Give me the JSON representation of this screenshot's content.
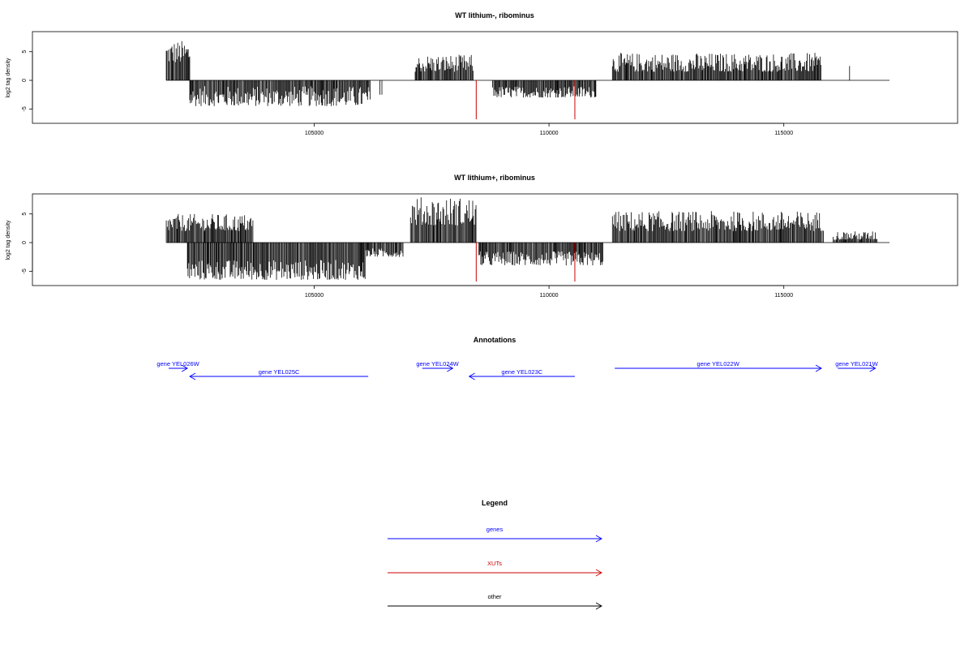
{
  "chart_data": [
    {
      "type": "bar",
      "title": "WT lithium-, ribominus",
      "xlabel": "",
      "ylabel": "log2 tag density",
      "x_ticks": [
        105000,
        110000,
        115000
      ],
      "y_ticks": [
        -5,
        0,
        5
      ],
      "xlim": [
        99000,
        118700
      ],
      "ylim": [
        -7.5,
        8.5
      ],
      "grid": false,
      "series": [
        {
          "color": "#000000",
          "blocks": [
            {
              "start": 101850,
              "end": 102350,
              "min": 3,
              "max": 7
            },
            {
              "start": 102350,
              "end": 106200,
              "min": -4.5,
              "max": -1
            },
            {
              "start": 106400,
              "end": 106450,
              "min": -2.5,
              "max": -2.5
            },
            {
              "start": 107150,
              "end": 108400,
              "min": 1.5,
              "max": 4.5
            },
            {
              "start": 108800,
              "end": 111000,
              "min": -3,
              "max": -1
            },
            {
              "start": 111350,
              "end": 115800,
              "min": 1.5,
              "max": 4.8
            },
            {
              "start": 116400,
              "end": 116430,
              "min": 2.5,
              "max": 2.5
            }
          ]
        },
        {
          "color": "#cc0000",
          "name": "XUTs",
          "bars": [
            {
              "x": 108450,
              "y": -6.8
            },
            {
              "x": 110550,
              "y": -6.8
            }
          ]
        }
      ]
    },
    {
      "type": "bar",
      "title": "WT lithium+, ribominus",
      "xlabel": "",
      "ylabel": "log2 tag density",
      "x_ticks": [
        105000,
        110000,
        115000
      ],
      "y_ticks": [
        -5,
        0,
        5
      ],
      "xlim": [
        99000,
        118700
      ],
      "ylim": [
        -7.5,
        8.5
      ],
      "grid": false,
      "series": [
        {
          "color": "#000000",
          "blocks": [
            {
              "start": 101850,
              "end": 103700,
              "min": 2,
              "max": 5
            },
            {
              "start": 102300,
              "end": 106100,
              "min": -6.5,
              "max": -3
            },
            {
              "start": 106100,
              "end": 106900,
              "min": -2.5,
              "max": -1
            },
            {
              "start": 107050,
              "end": 108450,
              "min": 3,
              "max": 8
            },
            {
              "start": 108500,
              "end": 111150,
              "min": -4,
              "max": -1.5
            },
            {
              "start": 111350,
              "end": 115850,
              "min": 2,
              "max": 5.5
            },
            {
              "start": 116050,
              "end": 117000,
              "min": 0.5,
              "max": 2
            }
          ]
        },
        {
          "color": "#cc0000",
          "name": "XUTs",
          "bars": [
            {
              "x": 108450,
              "y": -6.8
            },
            {
              "x": 110550,
              "y": -6.8
            }
          ]
        }
      ]
    }
  ],
  "annotations": {
    "title": "Annotations",
    "genes": [
      {
        "label": "gene YEL026W",
        "start": 101900,
        "end": 102300,
        "strand": "+",
        "row": 0
      },
      {
        "label": "gene YEL025C",
        "start": 102350,
        "end": 106150,
        "strand": "-",
        "row": 1
      },
      {
        "label": "gene YEL024W",
        "start": 107300,
        "end": 107950,
        "strand": "+",
        "row": 0
      },
      {
        "label": "gene YEL023C",
        "start": 108300,
        "end": 110550,
        "strand": "-",
        "row": 1
      },
      {
        "label": "gene YEL022W",
        "start": 111400,
        "end": 115800,
        "strand": "+",
        "row": 0
      },
      {
        "label": "gene YEL021W",
        "start": 116150,
        "end": 116950,
        "strand": "+",
        "row": 0
      }
    ],
    "color": "#0000ff"
  },
  "legend": {
    "title": "Legend",
    "items": [
      {
        "label": "genes",
        "color": "#0000ff"
      },
      {
        "label": "XUTs",
        "color": "#cc0000"
      },
      {
        "label": "other",
        "color": "#000000"
      }
    ]
  }
}
